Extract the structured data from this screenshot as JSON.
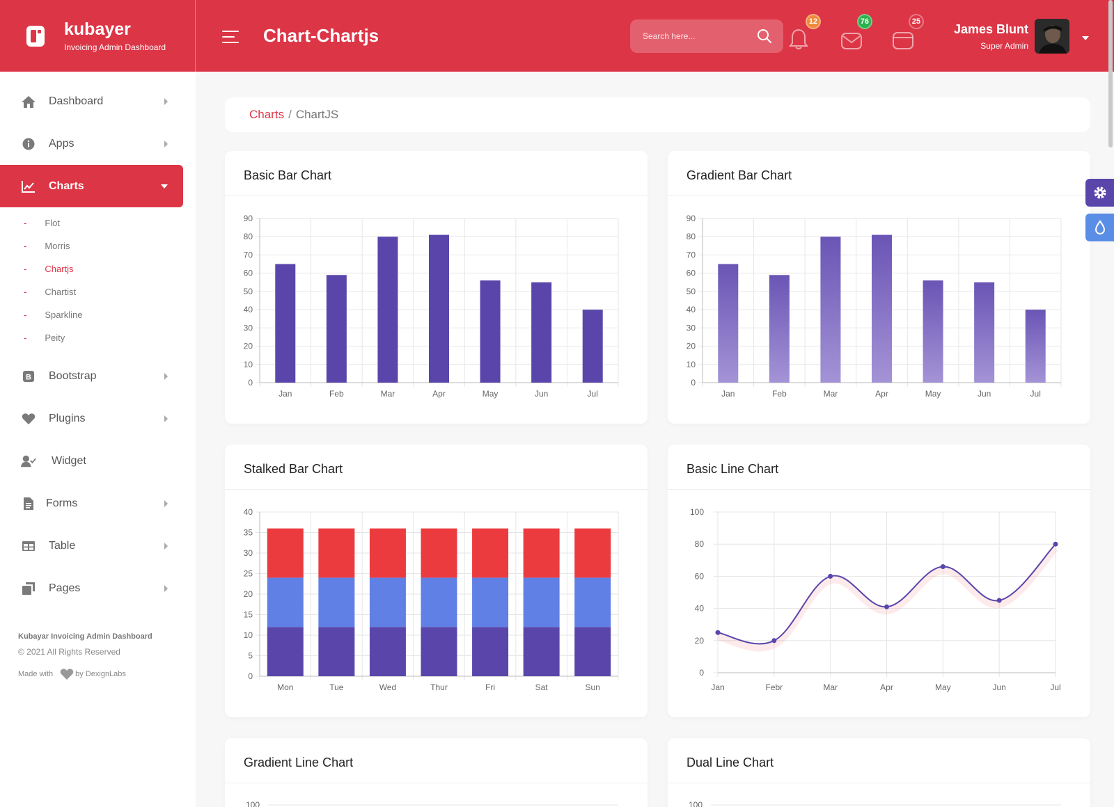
{
  "brand": {
    "name": "kubayer",
    "subtitle": "Invoicing Admin Dashboard"
  },
  "header": {
    "title": "Chart-Chartjs",
    "search_placeholder": "Search here...",
    "notifications": [
      {
        "icon": "bell-icon",
        "count": "12",
        "color": "#f0893c"
      },
      {
        "icon": "mail-icon",
        "count": "76",
        "color": "#2bb24c"
      },
      {
        "icon": "calendar-icon",
        "count": "25",
        "color": "#dc3546"
      }
    ],
    "user": {
      "name": "James Blunt",
      "role": "Super Admin"
    }
  },
  "sidebar": {
    "items": [
      {
        "label": "Dashboard",
        "icon": "home-icon"
      },
      {
        "label": "Apps",
        "icon": "info-icon"
      },
      {
        "label": "Charts",
        "icon": "chart-icon"
      },
      {
        "label": "Bootstrap",
        "icon": "bootstrap-icon"
      },
      {
        "label": "Plugins",
        "icon": "heart-icon"
      },
      {
        "label": "Widget",
        "icon": "user-check-icon"
      },
      {
        "label": "Forms",
        "icon": "file-icon"
      },
      {
        "label": "Table",
        "icon": "table-icon"
      },
      {
        "label": "Pages",
        "icon": "copy-icon"
      }
    ],
    "sub_items": [
      "Flot",
      "Morris",
      "Chartjs",
      "Chartist",
      "Sparkline",
      "Peity"
    ],
    "sub_dash": "-",
    "footer": {
      "title": "Kubayar Invoicing Admin Dashboard",
      "copyright": "© 2021 All Rights Reserved",
      "made_with": "Made with",
      "by": "by DexignLabs"
    }
  },
  "breadcrumb": {
    "parent": "Charts",
    "separator": "/",
    "current": "ChartJS"
  },
  "colors": {
    "primary": "#dc3546",
    "purple": "#5a46ab",
    "blue": "#6080e6",
    "red": "#ec3b3f",
    "gradient_top": "#6a55b5",
    "gradient_bottom": "#a493d6"
  },
  "chart_data": [
    {
      "title": "Basic Bar Chart",
      "type": "bar",
      "categories": [
        "Jan",
        "Feb",
        "Mar",
        "Apr",
        "May",
        "Jun",
        "Jul"
      ],
      "values": [
        65,
        59,
        80,
        81,
        56,
        55,
        40
      ],
      "ylim": [
        0,
        90
      ],
      "yticks": [
        "0",
        "10",
        "20",
        "30",
        "40",
        "50",
        "60",
        "70",
        "80",
        "90"
      ],
      "grid": true
    },
    {
      "title": "Gradient Bar Chart",
      "type": "bar",
      "categories": [
        "Jan",
        "Feb",
        "Mar",
        "Apr",
        "May",
        "Jun",
        "Jul"
      ],
      "values": [
        65,
        59,
        80,
        81,
        56,
        55,
        40
      ],
      "ylim": [
        0,
        90
      ],
      "yticks": [
        "0",
        "10",
        "20",
        "30",
        "40",
        "50",
        "60",
        "70",
        "80",
        "90"
      ],
      "grid": true
    },
    {
      "title": "Stalked Bar Chart",
      "type": "bar",
      "categories": [
        "Mon",
        "Tue",
        "Wed",
        "Thur",
        "Fri",
        "Sat",
        "Sun"
      ],
      "series": [
        {
          "values": [
            12,
            12,
            12,
            12,
            12,
            12,
            12
          ],
          "color": "#5a46ab"
        },
        {
          "values": [
            12,
            12,
            12,
            12,
            12,
            12,
            12
          ],
          "color": "#6080e6"
        },
        {
          "values": [
            12,
            12,
            12,
            12,
            12,
            12,
            12
          ],
          "color": "#ec3b3f"
        }
      ],
      "ylim": [
        0,
        40
      ],
      "yticks": [
        "0",
        "5",
        "10",
        "15",
        "20",
        "25",
        "30",
        "35",
        "40"
      ],
      "grid": true
    },
    {
      "title": "Basic Line Chart",
      "type": "line",
      "categories": [
        "Jan",
        "Febr",
        "Mar",
        "Apr",
        "May",
        "Jun",
        "Jul"
      ],
      "values": [
        25,
        20,
        60,
        41,
        66,
        45,
        80
      ],
      "ylim": [
        0,
        100
      ],
      "yticks": [
        "0",
        "20",
        "40",
        "60",
        "80",
        "100"
      ],
      "grid": true
    },
    {
      "title": "Gradient Line Chart",
      "type": "line",
      "yticks": [
        "100"
      ]
    },
    {
      "title": "Dual Line Chart",
      "type": "line",
      "yticks": [
        "100"
      ]
    }
  ]
}
